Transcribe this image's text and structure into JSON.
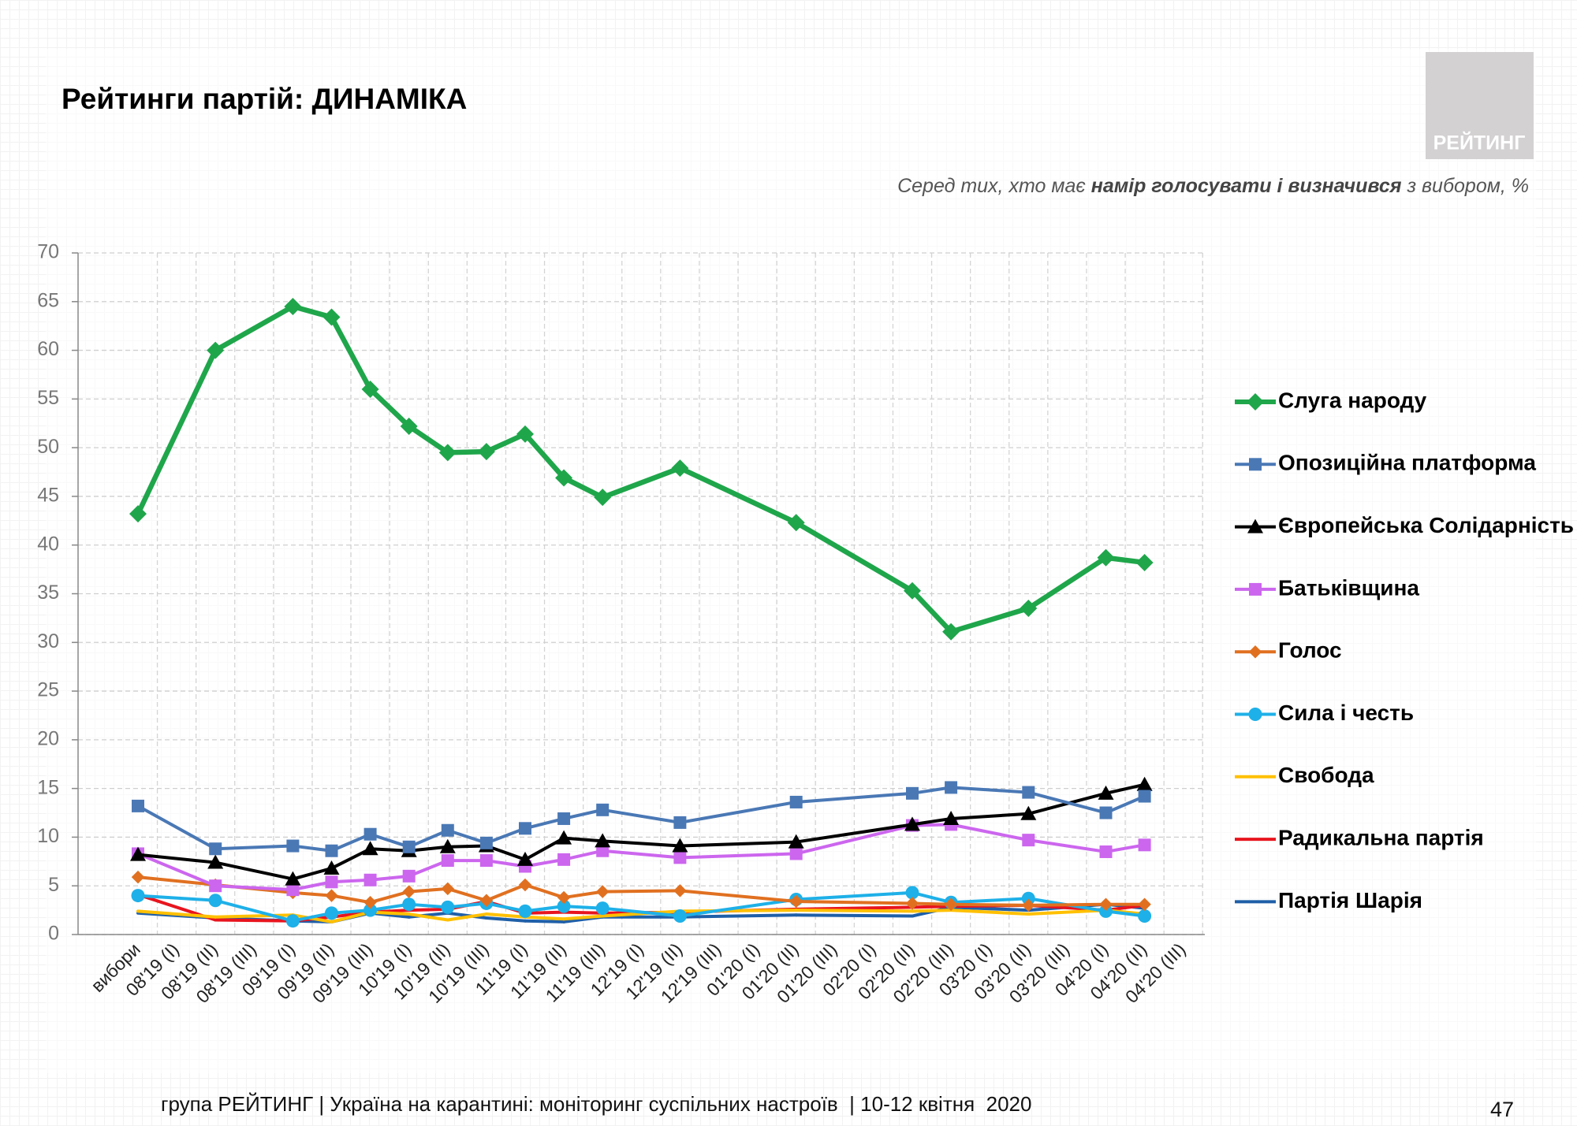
{
  "header": {
    "title": "Рейтинги партій: ДИНАМІКА",
    "logo": "РЕЙТИНГ",
    "subtitle": [
      "Серед тих, хто має ",
      "намір голосувати і визначився",
      " з вибором, %"
    ]
  },
  "chart_data": {
    "type": "line",
    "categories": [
      "вибори",
      "08'19 (I)",
      "08'19 (II)",
      "08'19 (III)",
      "09'19 (I)",
      "09'19 (II)",
      "09'19 (III)",
      "10'19 (I)",
      "10'19 (II)",
      "10'19 (III)",
      "11'19 (I)",
      "11'19 (II)",
      "11'19 (III)",
      "12'19 (I)",
      "12'19 (II)",
      "12'19 (III)",
      "01'20 (I)",
      "01'20 (II)",
      "01'20 (III)",
      "02'20 (I)",
      "02'20 (II)",
      "02'20 (III)",
      "03'20 (I)",
      "03'20 (II)",
      "03'20 (III)",
      "04'20 (I)",
      "04'20 (II)",
      "04'20 (III)"
    ],
    "ylim": [
      0,
      70
    ],
    "yticks": [
      0,
      5,
      10,
      15,
      20,
      25,
      30,
      35,
      40,
      45,
      50,
      55,
      60,
      65,
      70
    ],
    "grid": true,
    "legend": "right",
    "series": [
      {
        "name": "Слуга народу",
        "color": "#1fa64b",
        "marker": "diamond",
        "values": [
          43.2,
          null,
          60.0,
          null,
          64.5,
          63.4,
          56.0,
          52.2,
          49.5,
          49.6,
          51.4,
          46.9,
          44.9,
          null,
          47.9,
          null,
          null,
          42.3,
          null,
          null,
          35.3,
          31.1,
          null,
          33.5,
          null,
          38.7,
          38.2,
          null
        ]
      },
      {
        "name": "Опозиційна платформа",
        "color": "#4a78b5",
        "marker": "square",
        "values": [
          13.2,
          null,
          8.8,
          null,
          9.1,
          8.6,
          10.3,
          9.0,
          10.7,
          9.4,
          10.9,
          11.9,
          12.8,
          null,
          11.5,
          null,
          null,
          13.6,
          null,
          null,
          14.5,
          15.1,
          null,
          14.6,
          null,
          12.5,
          14.2,
          null
        ]
      },
      {
        "name": "Європейська Солідарність",
        "color": "#000000",
        "marker": "triangle",
        "values": [
          8.2,
          null,
          7.4,
          null,
          5.7,
          6.8,
          8.8,
          8.6,
          9.0,
          9.1,
          7.7,
          9.9,
          9.6,
          null,
          9.1,
          null,
          null,
          9.5,
          null,
          null,
          11.3,
          11.9,
          null,
          12.4,
          null,
          14.5,
          15.4,
          null
        ]
      },
      {
        "name": "Батьківщина",
        "color": "#cc66ee",
        "marker": "square",
        "values": [
          8.3,
          null,
          5.0,
          null,
          4.6,
          5.4,
          5.6,
          6.0,
          7.6,
          7.6,
          7.0,
          7.7,
          8.6,
          null,
          7.9,
          null,
          null,
          8.3,
          null,
          null,
          11.2,
          11.3,
          null,
          9.7,
          null,
          8.5,
          9.2,
          null
        ]
      },
      {
        "name": "Голос",
        "color": "#e07020",
        "marker": "diamond",
        "values": [
          5.9,
          null,
          5.1,
          null,
          4.3,
          4.0,
          3.3,
          4.4,
          4.7,
          3.5,
          5.1,
          3.8,
          4.4,
          null,
          4.5,
          null,
          null,
          3.4,
          null,
          null,
          3.2,
          3.1,
          null,
          3.0,
          null,
          3.1,
          3.1,
          null
        ]
      },
      {
        "name": "Сила і честь",
        "color": "#1eb0e8",
        "marker": "circle",
        "values": [
          4.0,
          null,
          3.5,
          null,
          1.4,
          2.2,
          2.5,
          3.1,
          2.8,
          3.2,
          2.4,
          2.9,
          2.7,
          null,
          1.9,
          null,
          null,
          3.6,
          null,
          null,
          4.3,
          3.3,
          null,
          3.7,
          null,
          2.4,
          1.9,
          null
        ]
      },
      {
        "name": "Свобода",
        "color": "#ffc000",
        "marker": "none",
        "values": [
          2.4,
          null,
          1.8,
          null,
          2.0,
          1.3,
          2.3,
          2.1,
          1.5,
          2.1,
          1.8,
          1.6,
          1.9,
          null,
          2.4,
          null,
          null,
          2.5,
          null,
          null,
          2.4,
          2.5,
          null,
          2.1,
          null,
          2.5,
          2.1,
          null
        ]
      },
      {
        "name": "Радикальна партія",
        "color": "#e8141e",
        "marker": "none",
        "values": [
          4.1,
          null,
          1.5,
          null,
          1.4,
          1.8,
          2.3,
          2.5,
          2.6,
          3.4,
          2.2,
          2.3,
          2.2,
          null,
          2.3,
          null,
          null,
          2.6,
          null,
          null,
          2.8,
          2.9,
          null,
          3.0,
          null,
          2.5,
          3.0,
          null
        ]
      },
      {
        "name": "Партія Шарія",
        "color": "#1f5fa8",
        "marker": "none",
        "values": [
          2.2,
          null,
          1.7,
          null,
          1.4,
          1.3,
          2.2,
          1.8,
          2.2,
          1.7,
          1.4,
          1.3,
          1.8,
          null,
          1.8,
          null,
          null,
          2.0,
          null,
          null,
          1.9,
          2.8,
          null,
          2.5,
          null,
          3.1,
          2.7,
          null
        ]
      }
    ]
  },
  "footer": {
    "text": "група РЕЙТИНГ | Україна на карантині: моніторинг суспільних настроїв  | 10-12 квітня  2020",
    "page": "47"
  }
}
